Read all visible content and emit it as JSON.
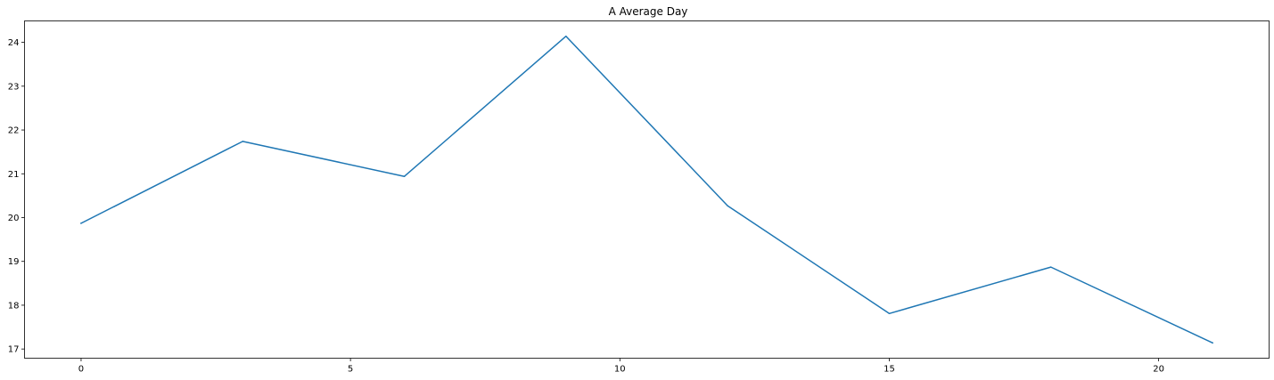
{
  "chart_data": {
    "type": "line",
    "title": "A Average Day",
    "xlabel": "",
    "ylabel": "",
    "x": [
      0,
      3,
      6,
      9,
      12,
      15,
      18,
      21
    ],
    "series": [
      {
        "values": [
          19.87,
          21.74,
          20.94,
          24.14,
          20.27,
          17.81,
          18.87,
          17.14
        ],
        "color": "#1f77b4"
      }
    ],
    "xlim": [
      -1.05,
      22.05
    ],
    "ylim": [
      16.79,
      24.49
    ],
    "xticks": [
      0,
      5,
      10,
      15,
      20
    ],
    "xtick_labels": [
      "0",
      "5",
      "10",
      "15",
      "20"
    ],
    "yticks": [
      17,
      18,
      19,
      20,
      21,
      22,
      23,
      24
    ],
    "ytick_labels": [
      "17",
      "18",
      "19",
      "20",
      "21",
      "22",
      "23",
      "24"
    ],
    "grid": false,
    "legend": "none"
  }
}
